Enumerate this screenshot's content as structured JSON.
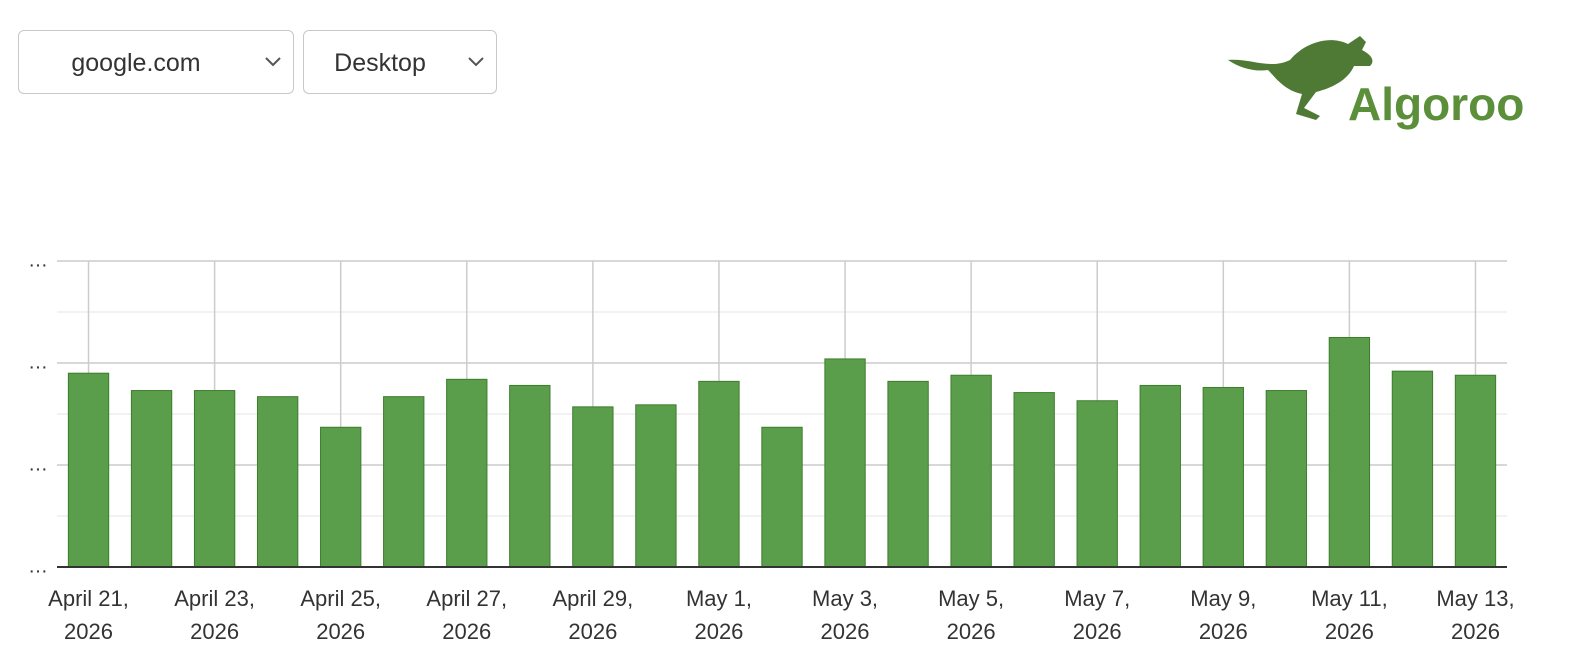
{
  "controls": {
    "domain_select": "google.com",
    "device_select": "Desktop"
  },
  "logo": "Algoroo",
  "chart_data": {
    "type": "bar",
    "categories": [
      "April 21, 2026",
      null,
      "April 23, 2026",
      null,
      "April 25, 2026",
      null,
      "April 27, 2026",
      null,
      "April 29, 2026",
      null,
      "May 1, 2026",
      null,
      "May 3, 2026",
      null,
      "May 5, 2026",
      null,
      "May 7, 2026",
      null,
      "May 9, 2026",
      null,
      "May 11, 2026",
      null,
      "May 13, 2026"
    ],
    "values": [
      1.9,
      1.73,
      1.73,
      1.67,
      1.37,
      1.67,
      1.84,
      1.78,
      1.57,
      1.59,
      1.82,
      1.37,
      2.04,
      1.82,
      1.88,
      1.71,
      1.63,
      1.78,
      1.76,
      1.73,
      2.25,
      1.92,
      1.88
    ],
    "color": "#5a9e4b",
    "ylim": [
      0,
      3
    ],
    "yticks": [
      {
        "value": 0,
        "label": "…"
      },
      {
        "value": 1,
        "label": "…"
      },
      {
        "value": 2,
        "label": "…"
      },
      {
        "value": 3,
        "label": "…"
      }
    ],
    "minor_yticks": [
      0.5,
      1.5,
      2.5
    ],
    "grid": true
  }
}
